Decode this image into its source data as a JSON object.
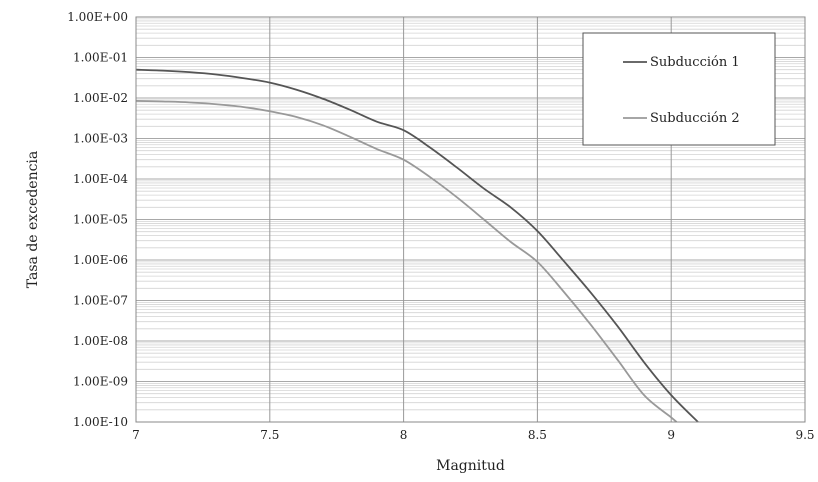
{
  "chart_data": {
    "type": "line",
    "title": "",
    "xlabel": "Magnitud",
    "ylabel": "Tasa de excedencia",
    "xlim": [
      7,
      9.5
    ],
    "ylim": [
      1e-10,
      1
    ],
    "yscale": "log",
    "grid": true,
    "legend_position": "top-right",
    "x_ticks": [
      7,
      7.5,
      8,
      8.5,
      9,
      9.5
    ],
    "x_tick_labels": [
      "7",
      "7.5",
      "8",
      "8.5",
      "9",
      "9.5"
    ],
    "y_ticks": [
      1,
      0.1,
      0.01,
      0.001,
      0.0001,
      1e-05,
      1e-06,
      1e-07,
      1e-08,
      1e-09,
      1e-10
    ],
    "y_tick_labels": [
      "1.00E+00",
      "1.00E-01",
      "1.00E-02",
      "1.00E-03",
      "1.00E-04",
      "1.00E-05",
      "1.00E-06",
      "1.00E-07",
      "1.00E-08",
      "1.00E-09",
      "1.00E-10"
    ],
    "series": [
      {
        "name": "Subducción 1",
        "color": "#555555",
        "x": [
          7.0,
          7.1,
          7.2,
          7.3,
          7.4,
          7.5,
          7.6,
          7.7,
          7.8,
          7.9,
          8.0,
          8.1,
          8.2,
          8.3,
          8.4,
          8.5,
          8.6,
          8.7,
          8.8,
          8.9,
          9.0,
          9.1
        ],
        "y": [
          0.05,
          0.0475,
          0.0435,
          0.038,
          0.031,
          0.024,
          0.016,
          0.0095,
          0.0051,
          0.0026,
          0.0016,
          0.00059,
          0.00019,
          5.8e-05,
          2e-05,
          5.2e-06,
          9.2e-07,
          1.55e-07,
          2.3e-08,
          2.9e-09,
          4.6e-10,
          1e-10
        ]
      },
      {
        "name": "Subducción 2",
        "color": "#999999",
        "x": [
          7.0,
          7.1,
          7.2,
          7.3,
          7.4,
          7.5,
          7.6,
          7.7,
          7.8,
          7.9,
          8.0,
          8.1,
          8.2,
          8.3,
          8.4,
          8.5,
          8.6,
          8.7,
          8.8,
          8.9,
          9.0,
          9.02
        ],
        "y": [
          0.0085,
          0.0082,
          0.0078,
          0.007,
          0.006,
          0.0047,
          0.0034,
          0.0021,
          0.0011,
          0.00055,
          0.0003,
          0.00011,
          3.5e-05,
          1e-05,
          2.8e-06,
          9e-07,
          1.6e-07,
          2.5e-08,
          3.4e-09,
          4.5e-10,
          1.3e-10,
          1e-10
        ]
      }
    ]
  }
}
